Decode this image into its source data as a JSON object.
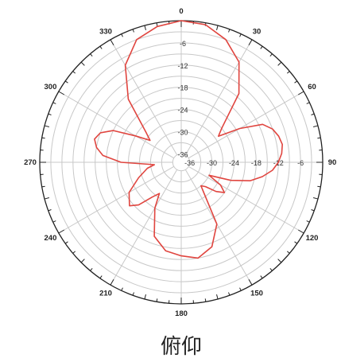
{
  "colors": {
    "background": "#ffffff",
    "grid": "#c8c8c8",
    "axis": "#222222",
    "trace": "#e0453f",
    "text": "#222222"
  },
  "caption": "俯仰",
  "chart_data": {
    "type": "polar-line",
    "title": "",
    "angle_unit": "degrees",
    "angle_zero": "top",
    "angle_direction": "clockwise",
    "angle_labels": [
      "0",
      "30",
      "60",
      "90",
      "120",
      "150",
      "180",
      "210",
      "240",
      "270",
      "300",
      "330"
    ],
    "radial_tick_labels": [
      "-36",
      "-30",
      "-24",
      "-18",
      "-12",
      "-6"
    ],
    "radial_range": [
      -36,
      0
    ],
    "grid": true,
    "series": [
      {
        "angles": [
          0,
          10,
          20,
          30,
          40,
          50,
          55,
          60,
          65,
          70,
          75,
          80,
          85,
          90,
          95,
          100,
          105,
          110,
          115,
          120,
          125,
          130,
          135,
          140,
          150,
          160,
          170,
          180,
          190,
          200,
          210,
          215,
          220,
          225,
          230,
          240,
          250,
          260,
          265,
          270,
          275,
          280,
          285,
          290,
          295,
          300,
          305,
          310,
          320,
          330,
          340,
          350,
          360
        ],
        "values": [
          0,
          -0.5,
          -3,
          -7,
          -14,
          -24,
          -26,
          -20,
          -14,
          -12,
          -11,
          -10.5,
          -11,
          -12,
          -13.5,
          -16,
          -19,
          -24,
          -30,
          -26,
          -24,
          -26,
          -29,
          -30,
          -19,
          -14,
          -12,
          -13,
          -14,
          -17,
          -24,
          -28,
          -26,
          -22,
          -20,
          -22,
          -26,
          -29,
          -31,
          -22,
          -17,
          -15,
          -14,
          -15,
          -18,
          -24,
          -28,
          -26,
          -16,
          -8,
          -3,
          -1,
          0
        ]
      }
    ]
  }
}
